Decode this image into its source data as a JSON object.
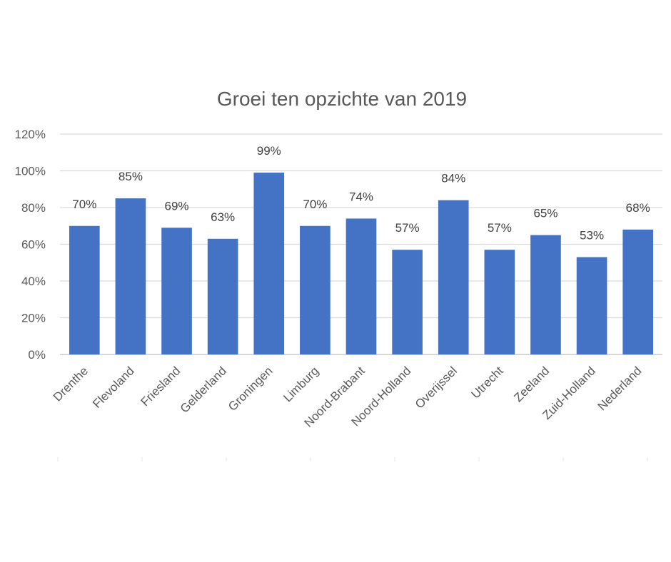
{
  "chart_data": {
    "type": "bar",
    "title": "Groei ten opzichte van 2019",
    "xlabel": "",
    "ylabel": "",
    "ylim": [
      0,
      120
    ],
    "y_ticks": [
      0,
      20,
      40,
      60,
      80,
      100,
      120
    ],
    "y_tick_suffix": "%",
    "grid": true,
    "legend": "none",
    "color": "#4472c4",
    "categories": [
      "Drenthe",
      "Flevoland",
      "Friesland",
      "Gelderland",
      "Groningen",
      "Limburg",
      "Noord-Brabant",
      "Noord-Holland",
      "Overijssel",
      "Utrecht",
      "Zeeland",
      "Zuid-Holland",
      "Nederland"
    ],
    "values": [
      70,
      85,
      69,
      63,
      99,
      70,
      74,
      57,
      84,
      57,
      65,
      53,
      68
    ],
    "data_labels": [
      "70%",
      "85%",
      "69%",
      "63%",
      "99%",
      "70%",
      "74%",
      "57%",
      "84%",
      "57%",
      "65%",
      "53%",
      "68%"
    ]
  }
}
